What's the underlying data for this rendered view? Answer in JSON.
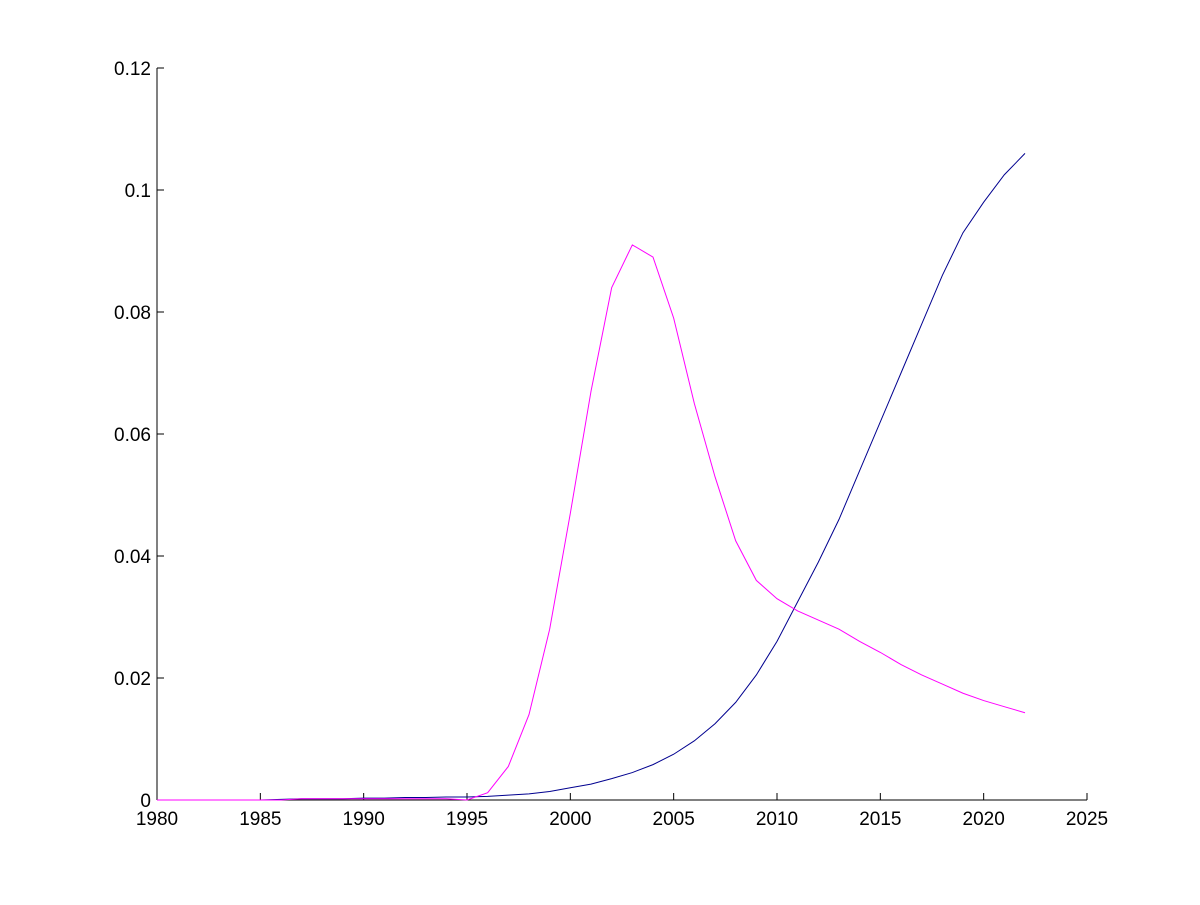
{
  "chart_data": {
    "type": "line",
    "x": [
      1980,
      1981,
      1982,
      1983,
      1984,
      1985,
      1986,
      1987,
      1988,
      1989,
      1990,
      1991,
      1992,
      1993,
      1994,
      1995,
      1996,
      1997,
      1998,
      1999,
      2000,
      2001,
      2002,
      2003,
      2004,
      2005,
      2006,
      2007,
      2008,
      2009,
      2010,
      2011,
      2012,
      2013,
      2014,
      2015,
      2016,
      2017,
      2018,
      2019,
      2020,
      2021,
      2022
    ],
    "series": [
      {
        "color": "#00008f",
        "values": [
          0,
          0,
          0,
          0,
          0,
          0,
          0.0001,
          0.0002,
          0.0002,
          0.0002,
          0.0003,
          0.0003,
          0.0004,
          0.0004,
          0.0005,
          0.0005,
          0.0006,
          0.0008,
          0.001,
          0.0014,
          0.002,
          0.0026,
          0.0035,
          0.0045,
          0.0058,
          0.0075,
          0.0097,
          0.0125,
          0.016,
          0.0205,
          0.026,
          0.0325,
          0.039,
          0.046,
          0.054,
          0.062,
          0.07,
          0.078,
          0.086,
          0.093,
          0.098,
          0.1025,
          0.106
        ]
      },
      {
        "color": "#ff00ff",
        "values": [
          0,
          0,
          0,
          0,
          0,
          0,
          0,
          0.0002,
          0.0002,
          0.0002,
          0.0002,
          0.0002,
          0.0002,
          0.0002,
          0.0002,
          0,
          0.0012,
          0.0055,
          0.014,
          0.028,
          0.047,
          0.067,
          0.084,
          0.091,
          0.089,
          0.079,
          0.065,
          0.053,
          0.0425,
          0.036,
          0.033,
          0.031,
          0.0295,
          0.028,
          0.026,
          0.0242,
          0.0222,
          0.0205,
          0.019,
          0.0175,
          0.0163,
          0.0153,
          0.0143
        ]
      }
    ],
    "xlim": [
      1980,
      2025
    ],
    "xticks": [
      1980,
      1985,
      1990,
      1995,
      2000,
      2005,
      2010,
      2015,
      2020,
      2025
    ],
    "ylim": [
      0,
      0.12
    ],
    "yticks": [
      0,
      0.02,
      0.04,
      0.06,
      0.08,
      0.1,
      0.12
    ]
  }
}
